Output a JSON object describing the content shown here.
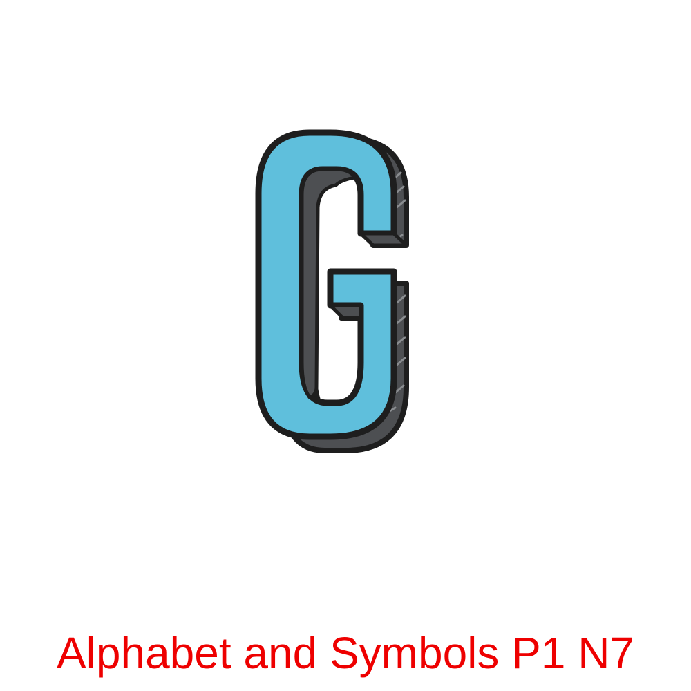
{
  "illustration": {
    "glyph": "G",
    "icon": "letter-g-3d-icon",
    "colors": {
      "face": "#5fbfdc",
      "extrusion": "#4d4f52",
      "outline": "#1e1e1e",
      "hatch": "#8a8d90",
      "background": "#ffffff"
    }
  },
  "caption": {
    "text": "Alphabet and Symbols P1 N7",
    "color": "#ee0000"
  }
}
